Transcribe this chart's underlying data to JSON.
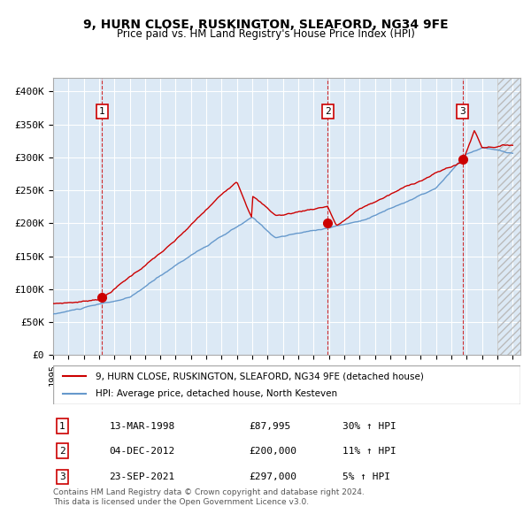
{
  "title": "9, HURN CLOSE, RUSKINGTON, SLEAFORD, NG34 9FE",
  "subtitle": "Price paid vs. HM Land Registry's House Price Index (HPI)",
  "xlim": [
    1995.0,
    2025.5
  ],
  "ylim": [
    0,
    420000
  ],
  "yticks": [
    0,
    50000,
    100000,
    150000,
    200000,
    250000,
    300000,
    350000,
    400000
  ],
  "ytick_labels": [
    "£0",
    "£50K",
    "£100K",
    "£150K",
    "£200K",
    "£250K",
    "£300K",
    "£350K",
    "£400K"
  ],
  "xtick_years": [
    1995,
    1996,
    1997,
    1998,
    1999,
    2000,
    2001,
    2002,
    2003,
    2004,
    2005,
    2006,
    2007,
    2008,
    2009,
    2010,
    2011,
    2012,
    2013,
    2014,
    2015,
    2016,
    2017,
    2018,
    2019,
    2020,
    2021,
    2022,
    2023,
    2024,
    2025
  ],
  "sale_dates": [
    1998.2,
    2012.92,
    2021.73
  ],
  "sale_prices": [
    87995,
    200000,
    297000
  ],
  "sale_labels": [
    "1",
    "2",
    "3"
  ],
  "sale_info": [
    [
      "1",
      "13-MAR-1998",
      "£87,995",
      "30% ↑ HPI"
    ],
    [
      "2",
      "04-DEC-2012",
      "£200,000",
      "11% ↑ HPI"
    ],
    [
      "3",
      "23-SEP-2021",
      "£297,000",
      "5% ↑ HPI"
    ]
  ],
  "legend_line1": "9, HURN CLOSE, RUSKINGTON, SLEAFORD, NG34 9FE (detached house)",
  "legend_line2": "HPI: Average price, detached house, North Kesteven",
  "footer1": "Contains HM Land Registry data © Crown copyright and database right 2024.",
  "footer2": "This data is licensed under the Open Government Licence v3.0.",
  "hpi_color": "#6699cc",
  "price_color": "#cc0000",
  "bg_color": "#dce9f5",
  "grid_color": "#ffffff",
  "marker_color": "#cc0000"
}
